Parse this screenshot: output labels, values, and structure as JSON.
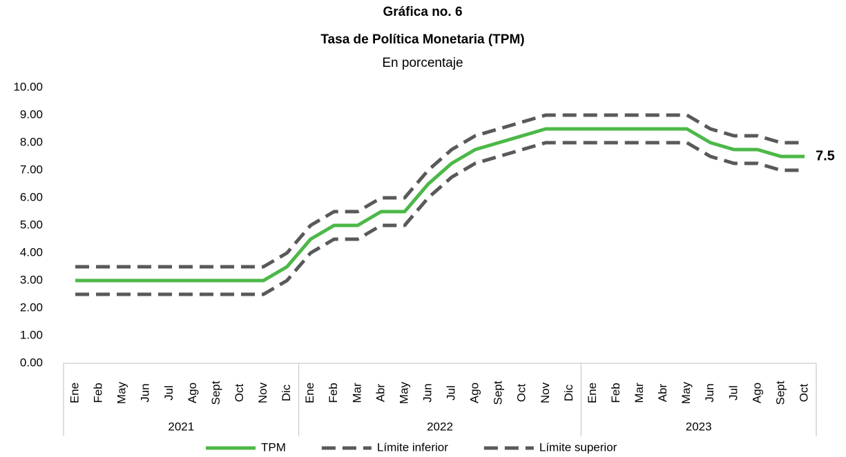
{
  "chart_data": {
    "type": "line",
    "title": "Gráfica no. 6",
    "subtitle": "Tasa de Política Monetaria (TPM)",
    "y_label": "En porcentaje",
    "category_groups": [
      {
        "name": "2021",
        "categories": [
          "Ene",
          "Feb",
          "May",
          "Jun",
          "Jul",
          "Ago",
          "Sept",
          "Oct",
          "Nov",
          "Dic"
        ]
      },
      {
        "name": "2022",
        "categories": [
          "Ene",
          "Feb",
          "Mar",
          "Abr",
          "May",
          "Jun",
          "Jul",
          "Ago",
          "Sept",
          "Oct",
          "Nov",
          "Dic"
        ]
      },
      {
        "name": "2023",
        "categories": [
          "Ene",
          "Feb",
          "Mar",
          "Abr",
          "May",
          "Jun",
          "Jul",
          "Ago",
          "Sept",
          "Oct"
        ]
      }
    ],
    "series": [
      {
        "name": "TPM",
        "color": "#4cb848",
        "dashed": false,
        "values": [
          3,
          3,
          3,
          3,
          3,
          3,
          3,
          3,
          3,
          3.5,
          4.5,
          5,
          5,
          5.5,
          5.5,
          6.5,
          7.25,
          7.75,
          8,
          8.25,
          8.5,
          8.5,
          8.5,
          8.5,
          8.5,
          8.5,
          8.5,
          8,
          7.75,
          7.75,
          7.5,
          7.5
        ],
        "end_label": "7.5"
      },
      {
        "name": "Límite inferior",
        "color": "#595959",
        "dashed": true,
        "values": [
          2.5,
          2.5,
          2.5,
          2.5,
          2.5,
          2.5,
          2.5,
          2.5,
          2.5,
          3,
          4,
          4.5,
          4.5,
          5,
          5,
          6,
          6.75,
          7.25,
          7.5,
          7.75,
          8,
          8,
          8,
          8,
          8,
          8,
          8,
          7.5,
          7.25,
          7.25,
          7,
          7
        ]
      },
      {
        "name": "Límite superior",
        "color": "#595959",
        "dashed": true,
        "values": [
          3.5,
          3.5,
          3.5,
          3.5,
          3.5,
          3.5,
          3.5,
          3.5,
          3.5,
          4,
          5,
          5.5,
          5.5,
          6,
          6,
          7,
          7.75,
          8.25,
          8.5,
          8.75,
          9,
          9,
          9,
          9,
          9,
          9,
          9,
          8.5,
          8.25,
          8.25,
          8,
          8
        ]
      }
    ],
    "ylim": [
      0,
      10
    ],
    "yticks": [
      {
        "value": 0,
        "label": "0.00"
      },
      {
        "value": 1,
        "label": "1.00"
      },
      {
        "value": 2,
        "label": "2.00"
      },
      {
        "value": 3,
        "label": "3.00"
      },
      {
        "value": 4,
        "label": "4.00"
      },
      {
        "value": 5,
        "label": "5.00"
      },
      {
        "value": 6,
        "label": "6.00"
      },
      {
        "value": 7,
        "label": "7.00"
      },
      {
        "value": 8,
        "label": "8.00"
      },
      {
        "value": 9,
        "label": "9.00"
      },
      {
        "value": 10,
        "label": "10.00"
      }
    ],
    "grid": false
  }
}
